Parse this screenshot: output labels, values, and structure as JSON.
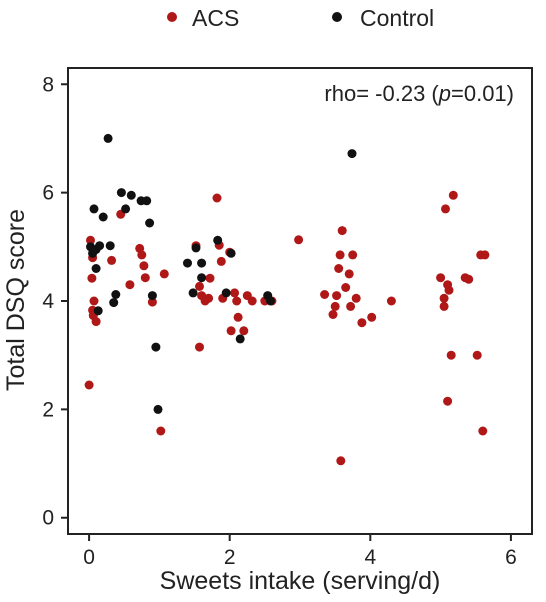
{
  "chart_data": {
    "type": "scatter",
    "xlabel": "Sweets intake (serving/d)",
    "ylabel": "Total DSQ score",
    "xlim": [
      -0.3,
      6.3
    ],
    "ylim": [
      -0.3,
      8.3
    ],
    "xticks": [
      0,
      2,
      4,
      6
    ],
    "yticks": [
      0,
      2,
      4,
      6,
      8
    ],
    "xtick_labels": [
      "0",
      "2",
      "4",
      "6"
    ],
    "ytick_labels": [
      "0",
      "2",
      "4",
      "6",
      "8"
    ],
    "annotation": {
      "prefix": "rho= -0.23 (",
      "italic": "p",
      "suffix": "=0.01)"
    },
    "legend_position": "top",
    "grid": false,
    "series": [
      {
        "name": "ACS",
        "color": "#b01818",
        "points": [
          [
            0.02,
            5.12
          ],
          [
            0.05,
            4.8
          ],
          [
            0.04,
            4.42
          ],
          [
            0.07,
            4.0
          ],
          [
            0.05,
            3.83
          ],
          [
            0.06,
            3.73
          ],
          [
            0.1,
            3.62
          ],
          [
            0.0,
            2.45
          ],
          [
            0.32,
            4.75
          ],
          [
            0.45,
            5.6
          ],
          [
            0.58,
            4.3
          ],
          [
            0.72,
            4.97
          ],
          [
            0.75,
            4.85
          ],
          [
            0.78,
            4.65
          ],
          [
            0.8,
            4.43
          ],
          [
            0.9,
            3.98
          ],
          [
            1.02,
            1.6
          ],
          [
            1.07,
            4.5
          ],
          [
            1.52,
            5.02
          ],
          [
            1.57,
            3.15
          ],
          [
            1.57,
            4.27
          ],
          [
            1.6,
            4.1
          ],
          [
            1.65,
            4.0
          ],
          [
            1.7,
            4.05
          ],
          [
            1.72,
            4.42
          ],
          [
            1.82,
            5.9
          ],
          [
            1.85,
            5.03
          ],
          [
            1.88,
            4.73
          ],
          [
            1.9,
            4.05
          ],
          [
            2.0,
            4.9
          ],
          [
            2.02,
            3.45
          ],
          [
            2.07,
            4.15
          ],
          [
            2.1,
            4.0
          ],
          [
            2.12,
            3.7
          ],
          [
            2.2,
            3.45
          ],
          [
            2.25,
            4.1
          ],
          [
            2.32,
            4.0
          ],
          [
            2.5,
            4.0
          ],
          [
            2.6,
            4.0
          ],
          [
            2.98,
            5.13
          ],
          [
            3.35,
            4.12
          ],
          [
            3.47,
            3.75
          ],
          [
            3.5,
            3.9
          ],
          [
            3.52,
            4.1
          ],
          [
            3.55,
            4.6
          ],
          [
            3.57,
            4.85
          ],
          [
            3.6,
            5.3
          ],
          [
            3.58,
            1.05
          ],
          [
            3.65,
            4.25
          ],
          [
            3.7,
            4.5
          ],
          [
            3.72,
            3.9
          ],
          [
            3.75,
            4.85
          ],
          [
            3.8,
            4.05
          ],
          [
            3.88,
            3.6
          ],
          [
            4.02,
            3.7
          ],
          [
            4.3,
            4.0
          ],
          [
            5.0,
            4.43
          ],
          [
            5.05,
            4.05
          ],
          [
            5.05,
            3.9
          ],
          [
            5.07,
            5.7
          ],
          [
            5.1,
            4.3
          ],
          [
            5.12,
            4.2
          ],
          [
            5.15,
            3.0
          ],
          [
            5.1,
            2.15
          ],
          [
            5.18,
            5.95
          ],
          [
            5.35,
            4.43
          ],
          [
            5.4,
            4.4
          ],
          [
            5.52,
            3.0
          ],
          [
            5.57,
            4.85
          ],
          [
            5.6,
            1.6
          ],
          [
            5.63,
            4.85
          ]
        ]
      },
      {
        "name": "Control",
        "color": "#111111",
        "points": [
          [
            0.02,
            5.0
          ],
          [
            0.05,
            4.88
          ],
          [
            0.07,
            5.7
          ],
          [
            0.1,
            4.95
          ],
          [
            0.1,
            4.6
          ],
          [
            0.13,
            3.82
          ],
          [
            0.2,
            5.55
          ],
          [
            0.15,
            5.02
          ],
          [
            0.27,
            7.0
          ],
          [
            0.3,
            5.02
          ],
          [
            0.35,
            3.97
          ],
          [
            0.38,
            4.12
          ],
          [
            0.46,
            6.0
          ],
          [
            0.52,
            5.7
          ],
          [
            0.6,
            5.95
          ],
          [
            0.74,
            5.85
          ],
          [
            0.82,
            5.85
          ],
          [
            0.86,
            5.44
          ],
          [
            0.9,
            4.1
          ],
          [
            0.95,
            3.15
          ],
          [
            0.98,
            2.0
          ],
          [
            1.4,
            4.7
          ],
          [
            1.48,
            4.15
          ],
          [
            1.52,
            4.98
          ],
          [
            1.6,
            4.7
          ],
          [
            1.6,
            4.43
          ],
          [
            1.83,
            5.12
          ],
          [
            1.95,
            4.15
          ],
          [
            2.02,
            4.88
          ],
          [
            2.15,
            3.3
          ],
          [
            2.54,
            4.1
          ],
          [
            2.58,
            4.0
          ],
          [
            3.74,
            6.72
          ]
        ]
      }
    ]
  }
}
